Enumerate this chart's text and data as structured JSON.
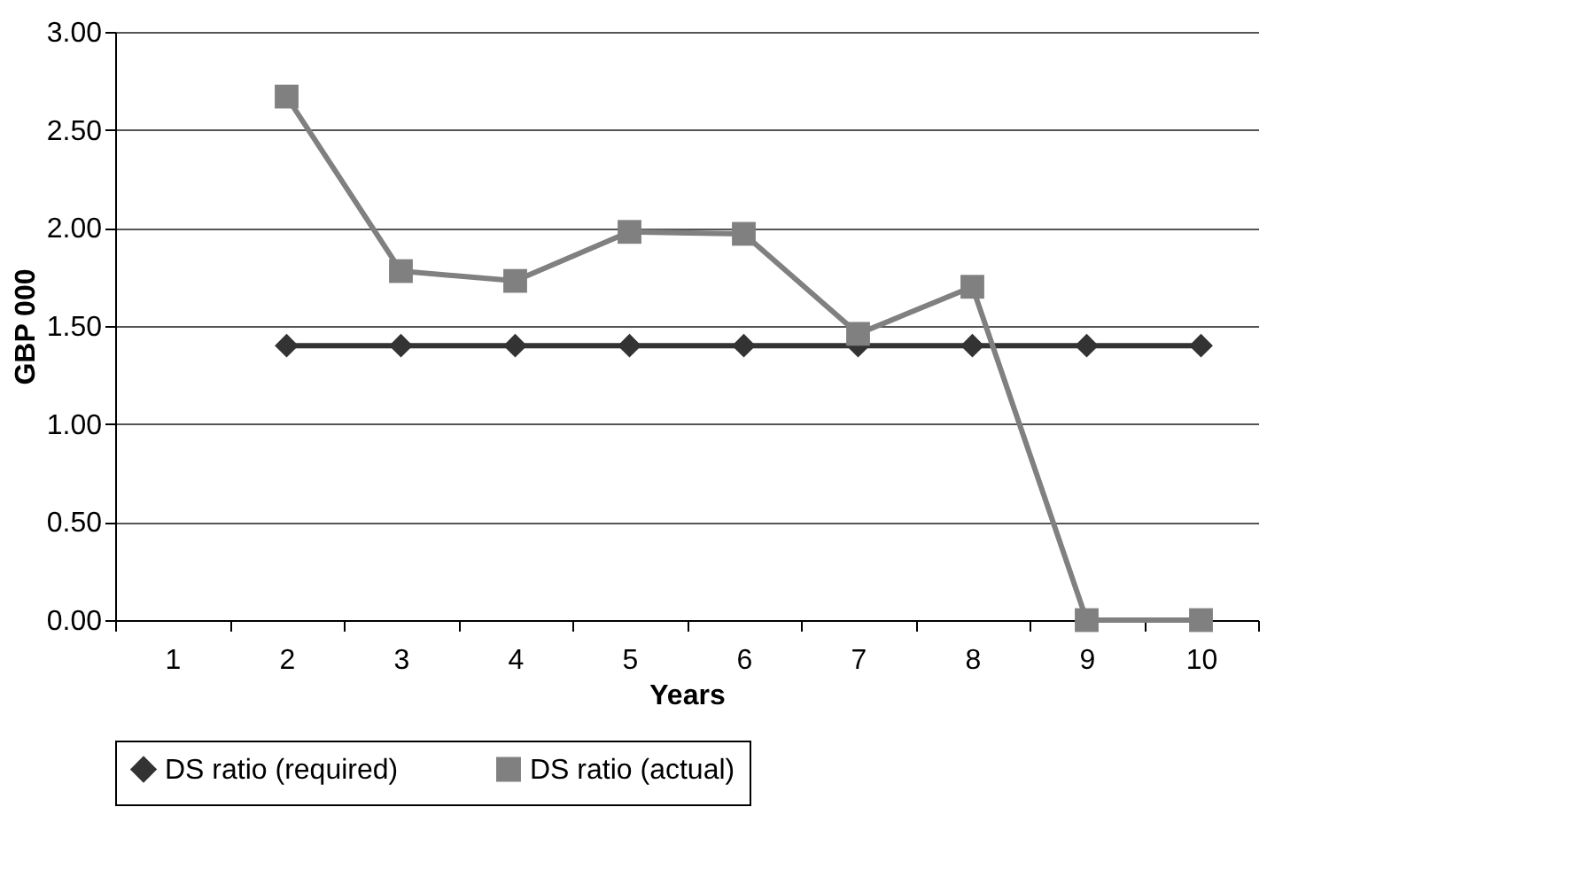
{
  "chart_data": {
    "type": "line",
    "xlabel": "Years",
    "ylabel": "GBP 000",
    "categories": [
      "1",
      "2",
      "3",
      "4",
      "5",
      "6",
      "7",
      "8",
      "9",
      "10"
    ],
    "series": [
      {
        "name": "DS ratio (required)",
        "color": "#333333",
        "marker": "diamond",
        "values": [
          null,
          1.4,
          1.4,
          1.4,
          1.4,
          1.4,
          1.4,
          1.4,
          1.4,
          1.4
        ]
      },
      {
        "name": "DS ratio (actual)",
        "color": "#808080",
        "marker": "square",
        "values": [
          null,
          2.67,
          1.78,
          1.73,
          1.98,
          1.97,
          1.46,
          1.7,
          0,
          0
        ]
      }
    ],
    "ylim": [
      0,
      3
    ],
    "yticks": [
      {
        "value": 0,
        "label": "0.00"
      },
      {
        "value": 0.5,
        "label": "0.50"
      },
      {
        "value": 1,
        "label": "1.00"
      },
      {
        "value": 1.5,
        "label": "1.50"
      },
      {
        "value": 2,
        "label": "2.00"
      },
      {
        "value": 2.5,
        "label": "2.50"
      },
      {
        "value": 3,
        "label": "3.00"
      }
    ],
    "grid": "y",
    "legend": "bottom"
  }
}
